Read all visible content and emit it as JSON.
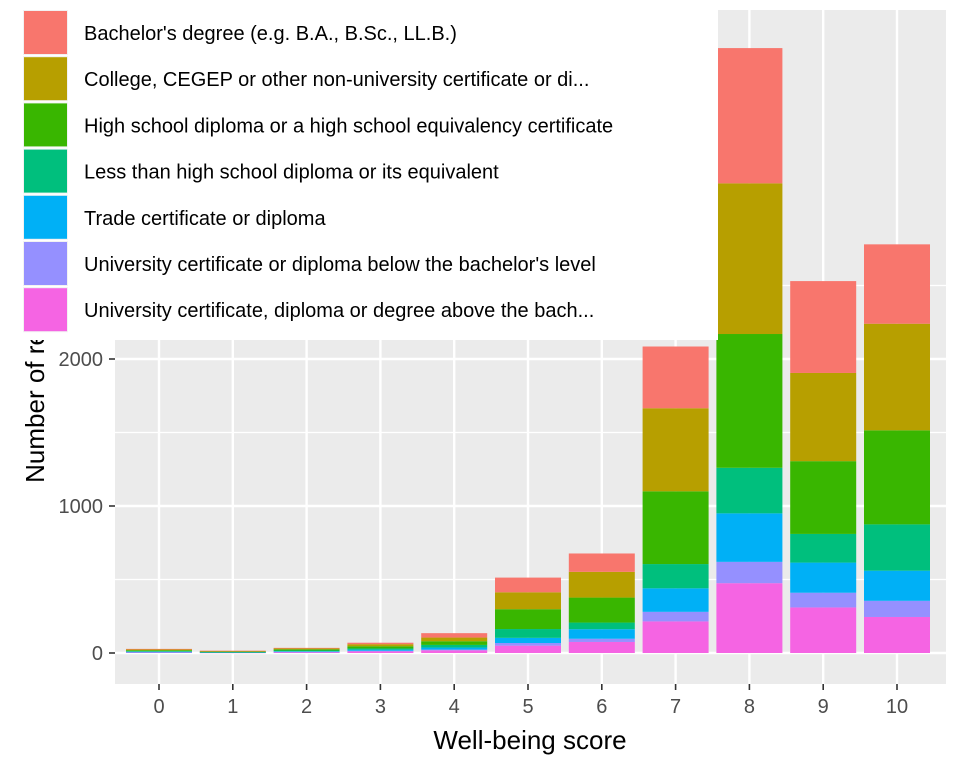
{
  "chart_data": {
    "type": "bar",
    "stacked": true,
    "xlabel": "Well-being score",
    "ylabel": "Number of respondents",
    "categories": [
      "0",
      "1",
      "2",
      "3",
      "4",
      "5",
      "6",
      "7",
      "8",
      "9",
      "10"
    ],
    "yticks": [
      0,
      1000,
      2000
    ],
    "ylim": [
      -190,
      4400
    ],
    "grid": true,
    "legend_position": "top-left",
    "series": [
      {
        "name": "University certificate, diploma or degree above the bach...",
        "color": "#F564E3",
        "values": [
          5,
          3,
          6,
          12,
          18,
          50,
          75,
          215,
          475,
          310,
          245
        ]
      },
      {
        "name": "University certificate or diploma below the bachelor's level",
        "color": "#9590FF",
        "values": [
          1,
          0,
          2,
          3,
          5,
          18,
          22,
          65,
          145,
          100,
          110
        ]
      },
      {
        "name": "Trade certificate or diploma",
        "color": "#00B0F6",
        "values": [
          3,
          2,
          4,
          8,
          14,
          35,
          65,
          160,
          330,
          205,
          205
        ]
      },
      {
        "name": "Less than high school diploma or its equivalent",
        "color": "#00BF7D",
        "values": [
          4,
          2,
          5,
          8,
          18,
          60,
          45,
          165,
          310,
          195,
          315
        ]
      },
      {
        "name": "High school diploma or a high school equivalency certificate",
        "color": "#39B600",
        "values": [
          6,
          3,
          8,
          15,
          25,
          135,
          170,
          495,
          910,
          495,
          640
        ]
      },
      {
        "name": "College, CEGEP or other non-university certificate or di...",
        "color": "#B79F00",
        "values": [
          5,
          3,
          6,
          14,
          25,
          115,
          175,
          565,
          1025,
          600,
          725
        ]
      },
      {
        "name": "Bachelor's degree (e.g. B.A., B.Sc., LL.B.)",
        "color": "#F8766D",
        "values": [
          4,
          3,
          4,
          10,
          30,
          100,
          125,
          420,
          920,
          625,
          540
        ]
      }
    ]
  }
}
